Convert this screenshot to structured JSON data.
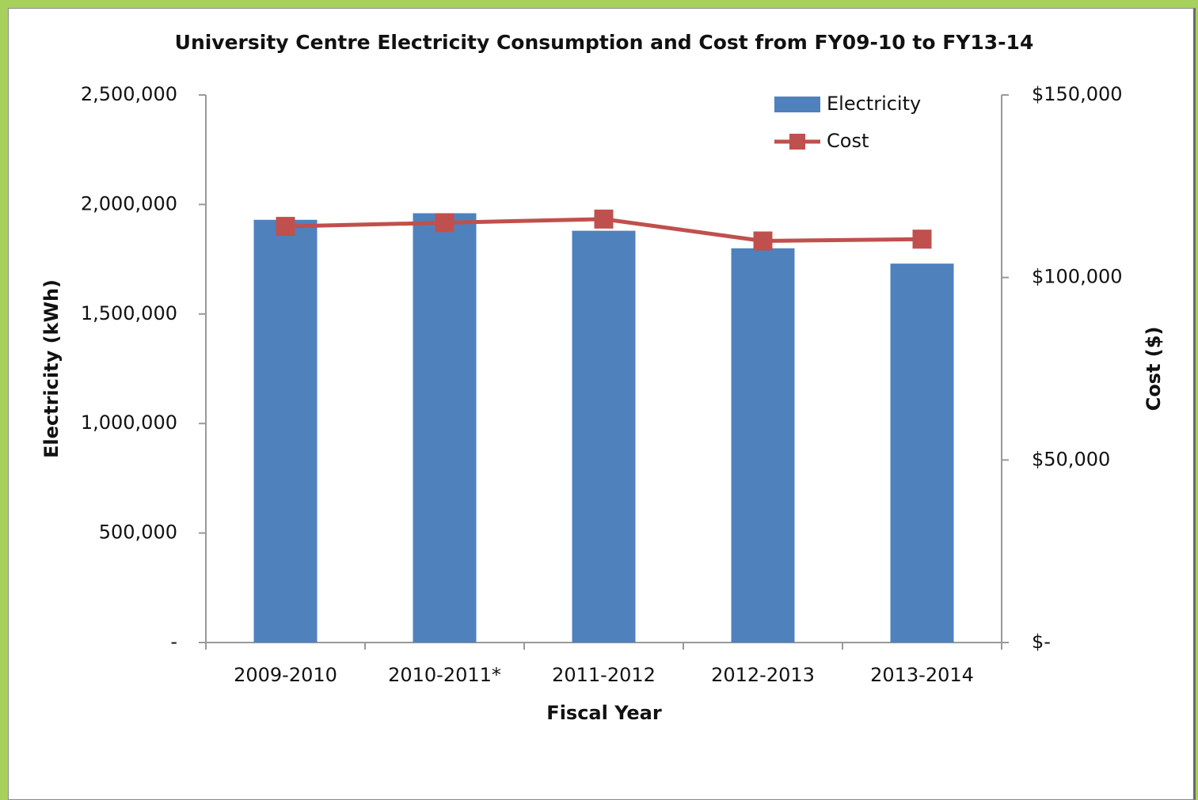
{
  "chart_data": {
    "type": "bar",
    "title": "University Centre Electricity Consumption and Cost from FY09-10 to FY13-14",
    "xlabel": "Fiscal Year",
    "ylabel": "Electricity (kWh)",
    "y2label": "Cost ($)",
    "categories": [
      "2009-2010",
      "2010-2011*",
      "2011-2012",
      "2012-2013",
      "2013-2014"
    ],
    "series": [
      {
        "name": "Electricity",
        "type": "bar",
        "color": "#4f81bd",
        "values": [
          1930000,
          1960000,
          1880000,
          1800000,
          1730000
        ]
      },
      {
        "name": "Cost",
        "type": "line",
        "axis": "y2",
        "color": "#c0504d",
        "values": [
          114000,
          115000,
          116000,
          110000,
          110500
        ]
      }
    ],
    "ylim": [
      0,
      2500000
    ],
    "yticks": [
      {
        "value": 0,
        "label": "-"
      },
      {
        "value": 500000,
        "label": "500,000"
      },
      {
        "value": 1000000,
        "label": "1,000,000"
      },
      {
        "value": 1500000,
        "label": "1,500,000"
      },
      {
        "value": 2000000,
        "label": "2,000,000"
      },
      {
        "value": 2500000,
        "label": "2,500,000"
      }
    ],
    "y2lim": [
      0,
      150000
    ],
    "y2ticks": [
      {
        "value": 0,
        "label": "$-"
      },
      {
        "value": 50000,
        "label": "$50,000"
      },
      {
        "value": 100000,
        "label": "$100,000"
      },
      {
        "value": 150000,
        "label": "$150,000"
      }
    ],
    "grid": false,
    "legend": "upper right"
  }
}
